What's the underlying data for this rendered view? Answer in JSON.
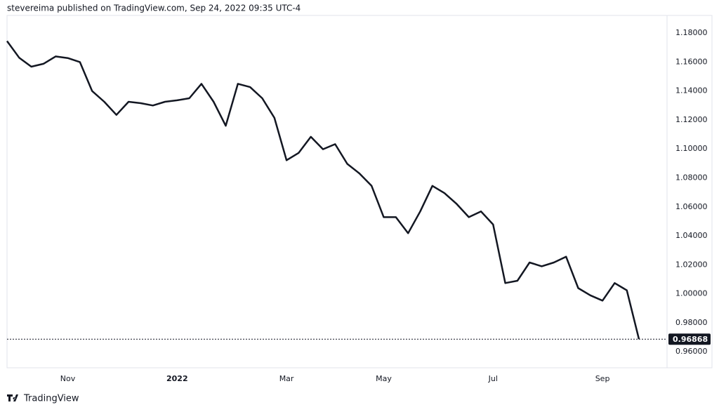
{
  "chart_data": {
    "type": "line",
    "title": "stevereima published on TradingView.com, Sep 24, 2022 09:35 UTC-4",
    "brand": "TradingView",
    "categories": [
      null,
      null,
      null,
      null,
      null,
      "Nov",
      null,
      null,
      null,
      null,
      null,
      null,
      null,
      null,
      "2022",
      null,
      null,
      null,
      null,
      null,
      null,
      null,
      null,
      "Mar",
      null,
      null,
      null,
      null,
      null,
      null,
      null,
      "May",
      null,
      null,
      null,
      null,
      null,
      null,
      null,
      null,
      "Jul",
      null,
      null,
      null,
      null,
      null,
      null,
      null,
      null,
      "Sep",
      null,
      null,
      null
    ],
    "series": [
      {
        "color": "#131722",
        "values": [
          1.1745,
          1.163,
          1.1568,
          1.1588,
          1.1639,
          1.1628,
          1.16,
          1.14,
          1.1326,
          1.1235,
          1.1326,
          1.1316,
          1.13,
          1.1326,
          1.1336,
          1.135,
          1.145,
          1.1326,
          1.116,
          1.145,
          1.1427,
          1.135,
          1.1215,
          1.0922,
          1.0973,
          1.1084,
          1.0998,
          1.1033,
          1.0897,
          1.0831,
          1.0745,
          1.0529,
          1.0529,
          1.0418,
          1.0569,
          1.0745,
          1.0695,
          1.062,
          1.0529,
          1.0569,
          1.0478,
          1.0074,
          1.009,
          1.0216,
          1.019,
          1.0216,
          1.0256,
          1.0039,
          0.9989,
          0.9953,
          1.0074,
          1.0024,
          0.96868
        ]
      }
    ],
    "ylim": [
      0.9489,
      1.1922
    ],
    "yticks": [
      {
        "value": 1.18,
        "label": "1.18000"
      },
      {
        "value": 1.16,
        "label": "1.16000"
      },
      {
        "value": 1.14,
        "label": "1.14000"
      },
      {
        "value": 1.12,
        "label": "1.12000"
      },
      {
        "value": 1.1,
        "label": "1.10000"
      },
      {
        "value": 1.08,
        "label": "1.08000"
      },
      {
        "value": 1.06,
        "label": "1.06000"
      },
      {
        "value": 1.04,
        "label": "1.04000"
      },
      {
        "value": 1.02,
        "label": "1.02000"
      },
      {
        "value": 1.0,
        "label": "1.00000"
      },
      {
        "value": 0.98,
        "label": "0.98000"
      },
      {
        "value": 0.96,
        "label": "0.96000"
      }
    ],
    "grid": false
  }
}
